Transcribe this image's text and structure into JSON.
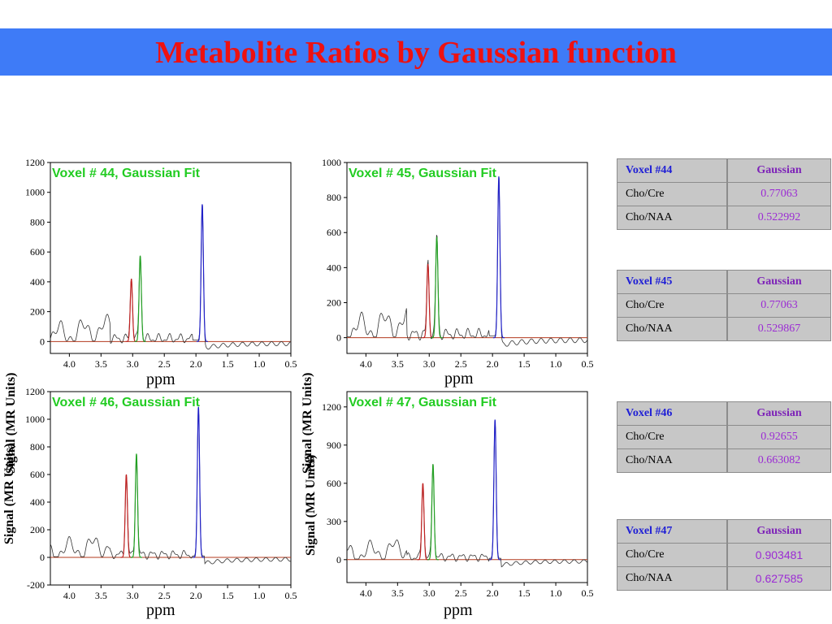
{
  "title": "Metabolite Ratios by Gaussian function",
  "colors": {
    "banner_bg": "#3e7bf7",
    "title_text": "#ee1111",
    "voxel_label": "#22cc22",
    "spectrum": "#333333",
    "naa_peak": "#2020c8",
    "cre_peak": "#22a022",
    "cho_peak": "#c02020",
    "baseline": "#b33a1e"
  },
  "chart_data": [
    {
      "type": "line",
      "label": "Voxel # 44, Gaussian Fit",
      "ylabel": "Signal (MR Units)",
      "xlabel": "ppm",
      "xlim": [
        4.3,
        0.5
      ],
      "ylim": [
        -80,
        1200
      ],
      "xticks": [
        "4.0",
        "3.5",
        "3.0",
        "2.5",
        "2.0",
        "1.5",
        "1.0",
        "0.5"
      ],
      "yticks": [
        "1200",
        "1000",
        "800",
        "600",
        "400",
        "200",
        "0"
      ],
      "peaks": [
        {
          "metabolite": "Cho",
          "ppm": 3.02,
          "height": 420,
          "color": "cho_peak"
        },
        {
          "metabolite": "Cre",
          "ppm": 2.88,
          "height": 575,
          "color": "cre_peak"
        },
        {
          "metabolite": "NAA",
          "ppm": 1.9,
          "height": 920,
          "color": "naa_peak"
        }
      ]
    },
    {
      "type": "line",
      "label": "Voxel # 45, Gaussian Fit",
      "ylabel": "Signal (MR Units)",
      "xlabel": "ppm",
      "xlim": [
        4.3,
        0.5
      ],
      "ylim": [
        -90,
        1000
      ],
      "xticks": [
        "4.0",
        "3.5",
        "3.0",
        "2.5",
        "2.0",
        "1.5",
        "1.0",
        "0.5"
      ],
      "yticks": [
        "1000",
        "800",
        "600",
        "400",
        "200",
        "0"
      ],
      "peaks": [
        {
          "metabolite": "Cho",
          "ppm": 3.02,
          "height": 420,
          "color": "cho_peak"
        },
        {
          "metabolite": "Cre",
          "ppm": 2.88,
          "height": 575,
          "color": "cre_peak"
        },
        {
          "metabolite": "NAA",
          "ppm": 1.9,
          "height": 920,
          "color": "naa_peak"
        }
      ]
    },
    {
      "type": "line",
      "label": "Voxel # 46, Gaussian Fit",
      "ylabel": "Signal (MR Units)",
      "xlabel": "ppm",
      "xlim": [
        4.3,
        0.5
      ],
      "ylim": [
        -200,
        1200
      ],
      "xticks": [
        "4.0",
        "3.5",
        "3.0",
        "2.5",
        "2.0",
        "1.5",
        "1.0",
        "0.5"
      ],
      "yticks": [
        "1200",
        "1000",
        "800",
        "600",
        "400",
        "200",
        "0",
        "-200"
      ],
      "peaks": [
        {
          "metabolite": "Cho",
          "ppm": 3.1,
          "height": 600,
          "color": "cho_peak"
        },
        {
          "metabolite": "Cre",
          "ppm": 2.94,
          "height": 750,
          "color": "cre_peak"
        },
        {
          "metabolite": "NAA",
          "ppm": 1.96,
          "height": 1090,
          "color": "naa_peak"
        }
      ]
    },
    {
      "type": "line",
      "label": "Voxel # 47, Gaussian Fit",
      "ylabel": "Signal (MR Units)",
      "xlabel": "ppm",
      "xlim": [
        4.3,
        0.5
      ],
      "ylim": [
        -180,
        1320
      ],
      "xticks": [
        "4.0",
        "3.5",
        "3.0",
        "2.5",
        "2.0",
        "1.5",
        "1.0",
        "0.5"
      ],
      "yticks": [
        "1200",
        "900",
        "600",
        "300",
        "0"
      ],
      "peaks": [
        {
          "metabolite": "Cho",
          "ppm": 3.1,
          "height": 600,
          "color": "cho_peak"
        },
        {
          "metabolite": "Cre",
          "ppm": 2.94,
          "height": 750,
          "color": "cre_peak"
        },
        {
          "metabolite": "NAA",
          "ppm": 1.96,
          "height": 1100,
          "color": "naa_peak"
        }
      ]
    }
  ],
  "tables": [
    {
      "voxel": "Voxel #44",
      "method": "Gaussian",
      "rows": [
        {
          "name": "Cho/Cre",
          "value": "0.77063"
        },
        {
          "name": "Cho/NAA",
          "value": "0.522992"
        }
      ]
    },
    {
      "voxel": "Voxel #45",
      "method": "Gaussian",
      "rows": [
        {
          "name": "Cho/Cre",
          "value": "0.77063"
        },
        {
          "name": "Cho/NAA",
          "value": "0.529867"
        }
      ]
    },
    {
      "voxel": "Voxel #46",
      "method": "Gaussian",
      "rows": [
        {
          "name": "Cho/Cre",
          "value": "0.92655"
        },
        {
          "name": "Cho/NAA",
          "value": "0.663082"
        }
      ]
    },
    {
      "voxel": "Voxel #47",
      "method": "Gaussian",
      "rows": [
        {
          "name": "Cho/Cre",
          "value": "0.903481"
        },
        {
          "name": "Cho/NAA",
          "value": "0.627585"
        }
      ]
    }
  ]
}
